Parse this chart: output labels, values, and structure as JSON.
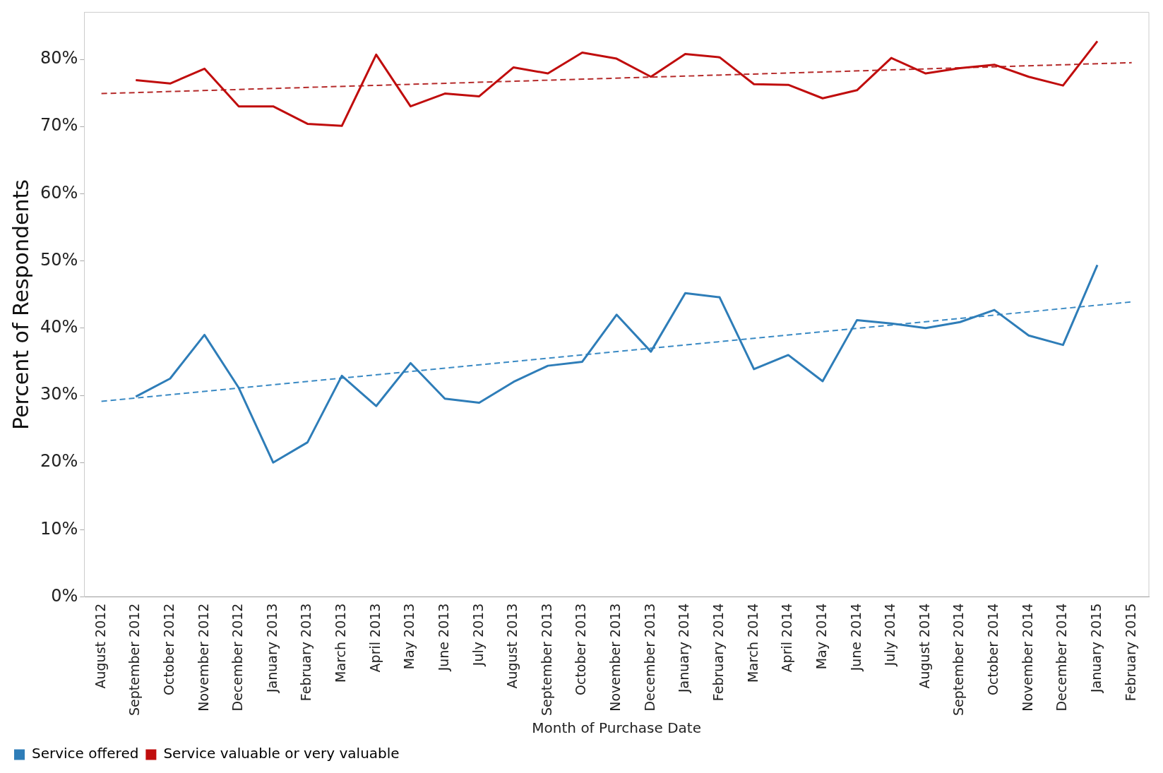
{
  "chart_data": {
    "type": "line",
    "xlabel": "Month of Purchase Date",
    "ylabel": "Percent of Respondents",
    "categories": [
      "August 2012",
      "September 2012",
      "October 2012",
      "November 2012",
      "December 2012",
      "January 2013",
      "February 2013",
      "March 2013",
      "April 2013",
      "May 2013",
      "June 2013",
      "July 2013",
      "August 2013",
      "September 2013",
      "October 2013",
      "November 2013",
      "December 2013",
      "January 2014",
      "February 2014",
      "March 2014",
      "April 2014",
      "May 2014",
      "June 2014",
      "July 2014",
      "August 2014",
      "September 2014",
      "October 2014",
      "November 2014",
      "December 2014",
      "January 2015",
      "February 2015"
    ],
    "series": [
      {
        "name": "Service offered",
        "color": "#2e7db8",
        "values": [
          null,
          29.8,
          32.5,
          39.0,
          31.1,
          20.0,
          23.0,
          32.9,
          28.4,
          34.8,
          29.5,
          28.9,
          32.0,
          34.4,
          35.0,
          42.0,
          36.5,
          45.2,
          44.6,
          33.9,
          36.0,
          32.1,
          41.2,
          40.7,
          40.0,
          40.9,
          42.7,
          38.9,
          37.5,
          49.4,
          null
        ]
      },
      {
        "name": "Service valuable or very valuable",
        "color": "#c00d0d",
        "values": [
          null,
          76.9,
          76.4,
          78.6,
          73.0,
          73.0,
          70.4,
          70.1,
          80.7,
          73.0,
          74.9,
          74.5,
          78.8,
          77.9,
          81.0,
          80.1,
          77.4,
          80.8,
          80.3,
          76.3,
          76.2,
          74.2,
          75.4,
          80.2,
          77.9,
          78.7,
          79.2,
          77.4,
          76.1,
          82.7,
          null
        ]
      },
      {
        "color": "#3a8ac4",
        "line_style": "dashed",
        "x": [
          "August 2012",
          "February 2015"
        ],
        "values": [
          29.1,
          43.9
        ]
      },
      {
        "color": "#b52a2a",
        "line_style": "dashed",
        "x": [
          "August 2012",
          "February 2015"
        ],
        "values": [
          74.9,
          79.5
        ]
      }
    ],
    "ylim": [
      0,
      87
    ],
    "yticks": [
      {
        "value": 0,
        "label": "0%"
      },
      {
        "value": 10,
        "label": "10%"
      },
      {
        "value": 20,
        "label": "20%"
      },
      {
        "value": 30,
        "label": "30%"
      },
      {
        "value": 40,
        "label": "40%"
      },
      {
        "value": 50,
        "label": "50%"
      },
      {
        "value": 60,
        "label": "60%"
      },
      {
        "value": 70,
        "label": "70%"
      },
      {
        "value": 80,
        "label": "80%"
      }
    ],
    "grid": false,
    "legend": "bottom left",
    "marker": "none",
    "line_style": "solid"
  }
}
